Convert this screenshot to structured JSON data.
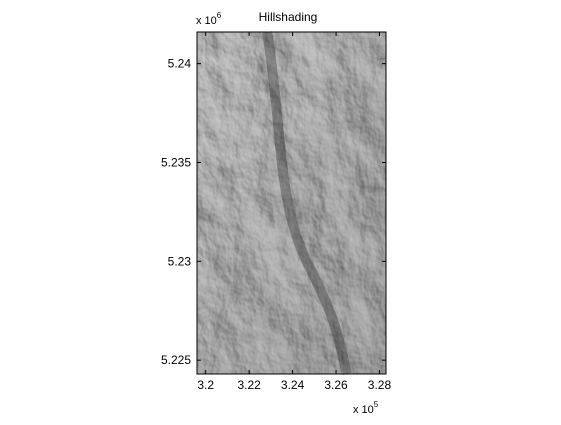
{
  "chart_data": {
    "type": "heatmap",
    "title": "Hillshading",
    "colormap": "gray",
    "xlabel": "",
    "ylabel": "",
    "xlim": [
      319600,
      328300
    ],
    "ylim": [
      5224300,
      5241600
    ],
    "x_ticks": [
      320000,
      322000,
      324000,
      326000,
      328000
    ],
    "x_tick_labels": [
      "3.2",
      "3.22",
      "3.24",
      "3.26",
      "3.28"
    ],
    "y_ticks": [
      5225000,
      5230000,
      5235000,
      5240000
    ],
    "y_tick_labels": [
      "5.225",
      "5.23",
      "5.235",
      "5.24"
    ],
    "x_multiplier": {
      "base": "x 10",
      "exponent": "5"
    },
    "y_multiplier": {
      "base": "x 10",
      "exponent": "6"
    },
    "grid": false,
    "colors": {
      "axes": "#000000",
      "background": "#ffffff"
    }
  }
}
